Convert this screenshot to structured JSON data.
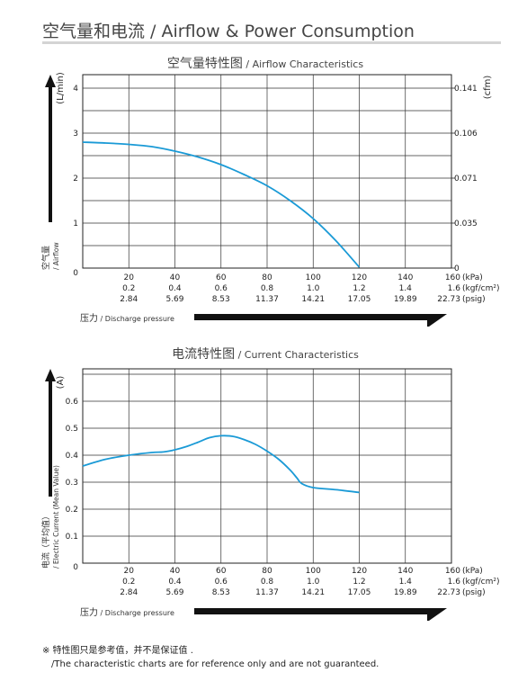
{
  "header": {
    "title": "空气量和电流 / Airflow & Power Consumption"
  },
  "chart_data": [
    {
      "type": "line",
      "title": "空气量特性图",
      "subtitle": "/ Airflow Characteristics",
      "ylabel_unit": "(L/min)",
      "ylabel_zh": "空气量",
      "ylabel_en": "/ Airflow",
      "y2label_unit": "(cfm)",
      "ylim": [
        0,
        4.3
      ],
      "xlim": [
        0,
        160
      ],
      "y_ticks": [
        "1",
        "2",
        "3",
        "4"
      ],
      "y2_ticks": [
        "0",
        "0.035",
        "0.071",
        "0.106",
        "0.141"
      ],
      "origin_label": "0",
      "x_ticks_kpa": [
        "20",
        "40",
        "60",
        "80",
        "100",
        "120",
        "140",
        "160"
      ],
      "x_ticks_kgf": [
        "0.2",
        "0.4",
        "0.6",
        "0.8",
        "1.0",
        "1.2",
        "1.4",
        "1.6"
      ],
      "x_ticks_psig": [
        "2.84",
        "5.69",
        "8.53",
        "11.37",
        "14.21",
        "17.05",
        "19.89",
        "22.73"
      ],
      "x_unit_kpa": "(kPa)",
      "x_unit_kgf": "(kgf/cm²)",
      "x_unit_psig": "(psig)",
      "xlabel_zh": "压力",
      "xlabel_en": "/ Discharge pressure",
      "grid": true,
      "color": "#1a9ad6",
      "x": [
        0,
        10,
        20,
        30,
        40,
        50,
        60,
        70,
        80,
        90,
        100,
        110,
        120
      ],
      "y": [
        2.8,
        2.78,
        2.75,
        2.7,
        2.6,
        2.47,
        2.3,
        2.08,
        1.83,
        1.5,
        1.1,
        0.6,
        0.02
      ]
    },
    {
      "type": "line",
      "title": "电流特性图",
      "subtitle": "/ Current Characteristics",
      "ylabel_unit": "(A)",
      "ylabel_zh": "电流（平均值）",
      "ylabel_en": "/ Electric Current (Mean Value)",
      "ylim": [
        0,
        0.72
      ],
      "xlim": [
        0,
        160
      ],
      "y_ticks": [
        "0.1",
        "0.2",
        "0.3",
        "0.4",
        "0.5",
        "0.6"
      ],
      "origin_label": "0",
      "x_ticks_kpa": [
        "20",
        "40",
        "60",
        "80",
        "100",
        "120",
        "140",
        "160"
      ],
      "x_ticks_kgf": [
        "0.2",
        "0.4",
        "0.6",
        "0.8",
        "1.0",
        "1.2",
        "1.4",
        "1.6"
      ],
      "x_ticks_psig": [
        "2.84",
        "5.69",
        "8.53",
        "11.37",
        "14.21",
        "17.05",
        "19.89",
        "22.73"
      ],
      "x_unit_kpa": "(kPa)",
      "x_unit_kgf": "(kgf/cm²)",
      "x_unit_psig": "(psig)",
      "xlabel_zh": "压力",
      "xlabel_en": "/ Discharge pressure",
      "grid": true,
      "color": "#1a9ad6",
      "x": [
        0,
        10,
        20,
        30,
        35,
        40,
        45,
        50,
        55,
        60,
        65,
        70,
        75,
        80,
        85,
        90,
        93,
        95,
        100,
        110,
        120
      ],
      "y": [
        0.36,
        0.385,
        0.4,
        0.41,
        0.412,
        0.42,
        0.432,
        0.448,
        0.465,
        0.472,
        0.47,
        0.458,
        0.44,
        0.415,
        0.385,
        0.345,
        0.315,
        0.295,
        0.28,
        0.272,
        0.262
      ]
    }
  ],
  "footnote": {
    "line1": "※ 特性图只是参考值，并不是保证值 .",
    "line2": "/The characteristic charts are for reference only and are not guaranteed."
  }
}
